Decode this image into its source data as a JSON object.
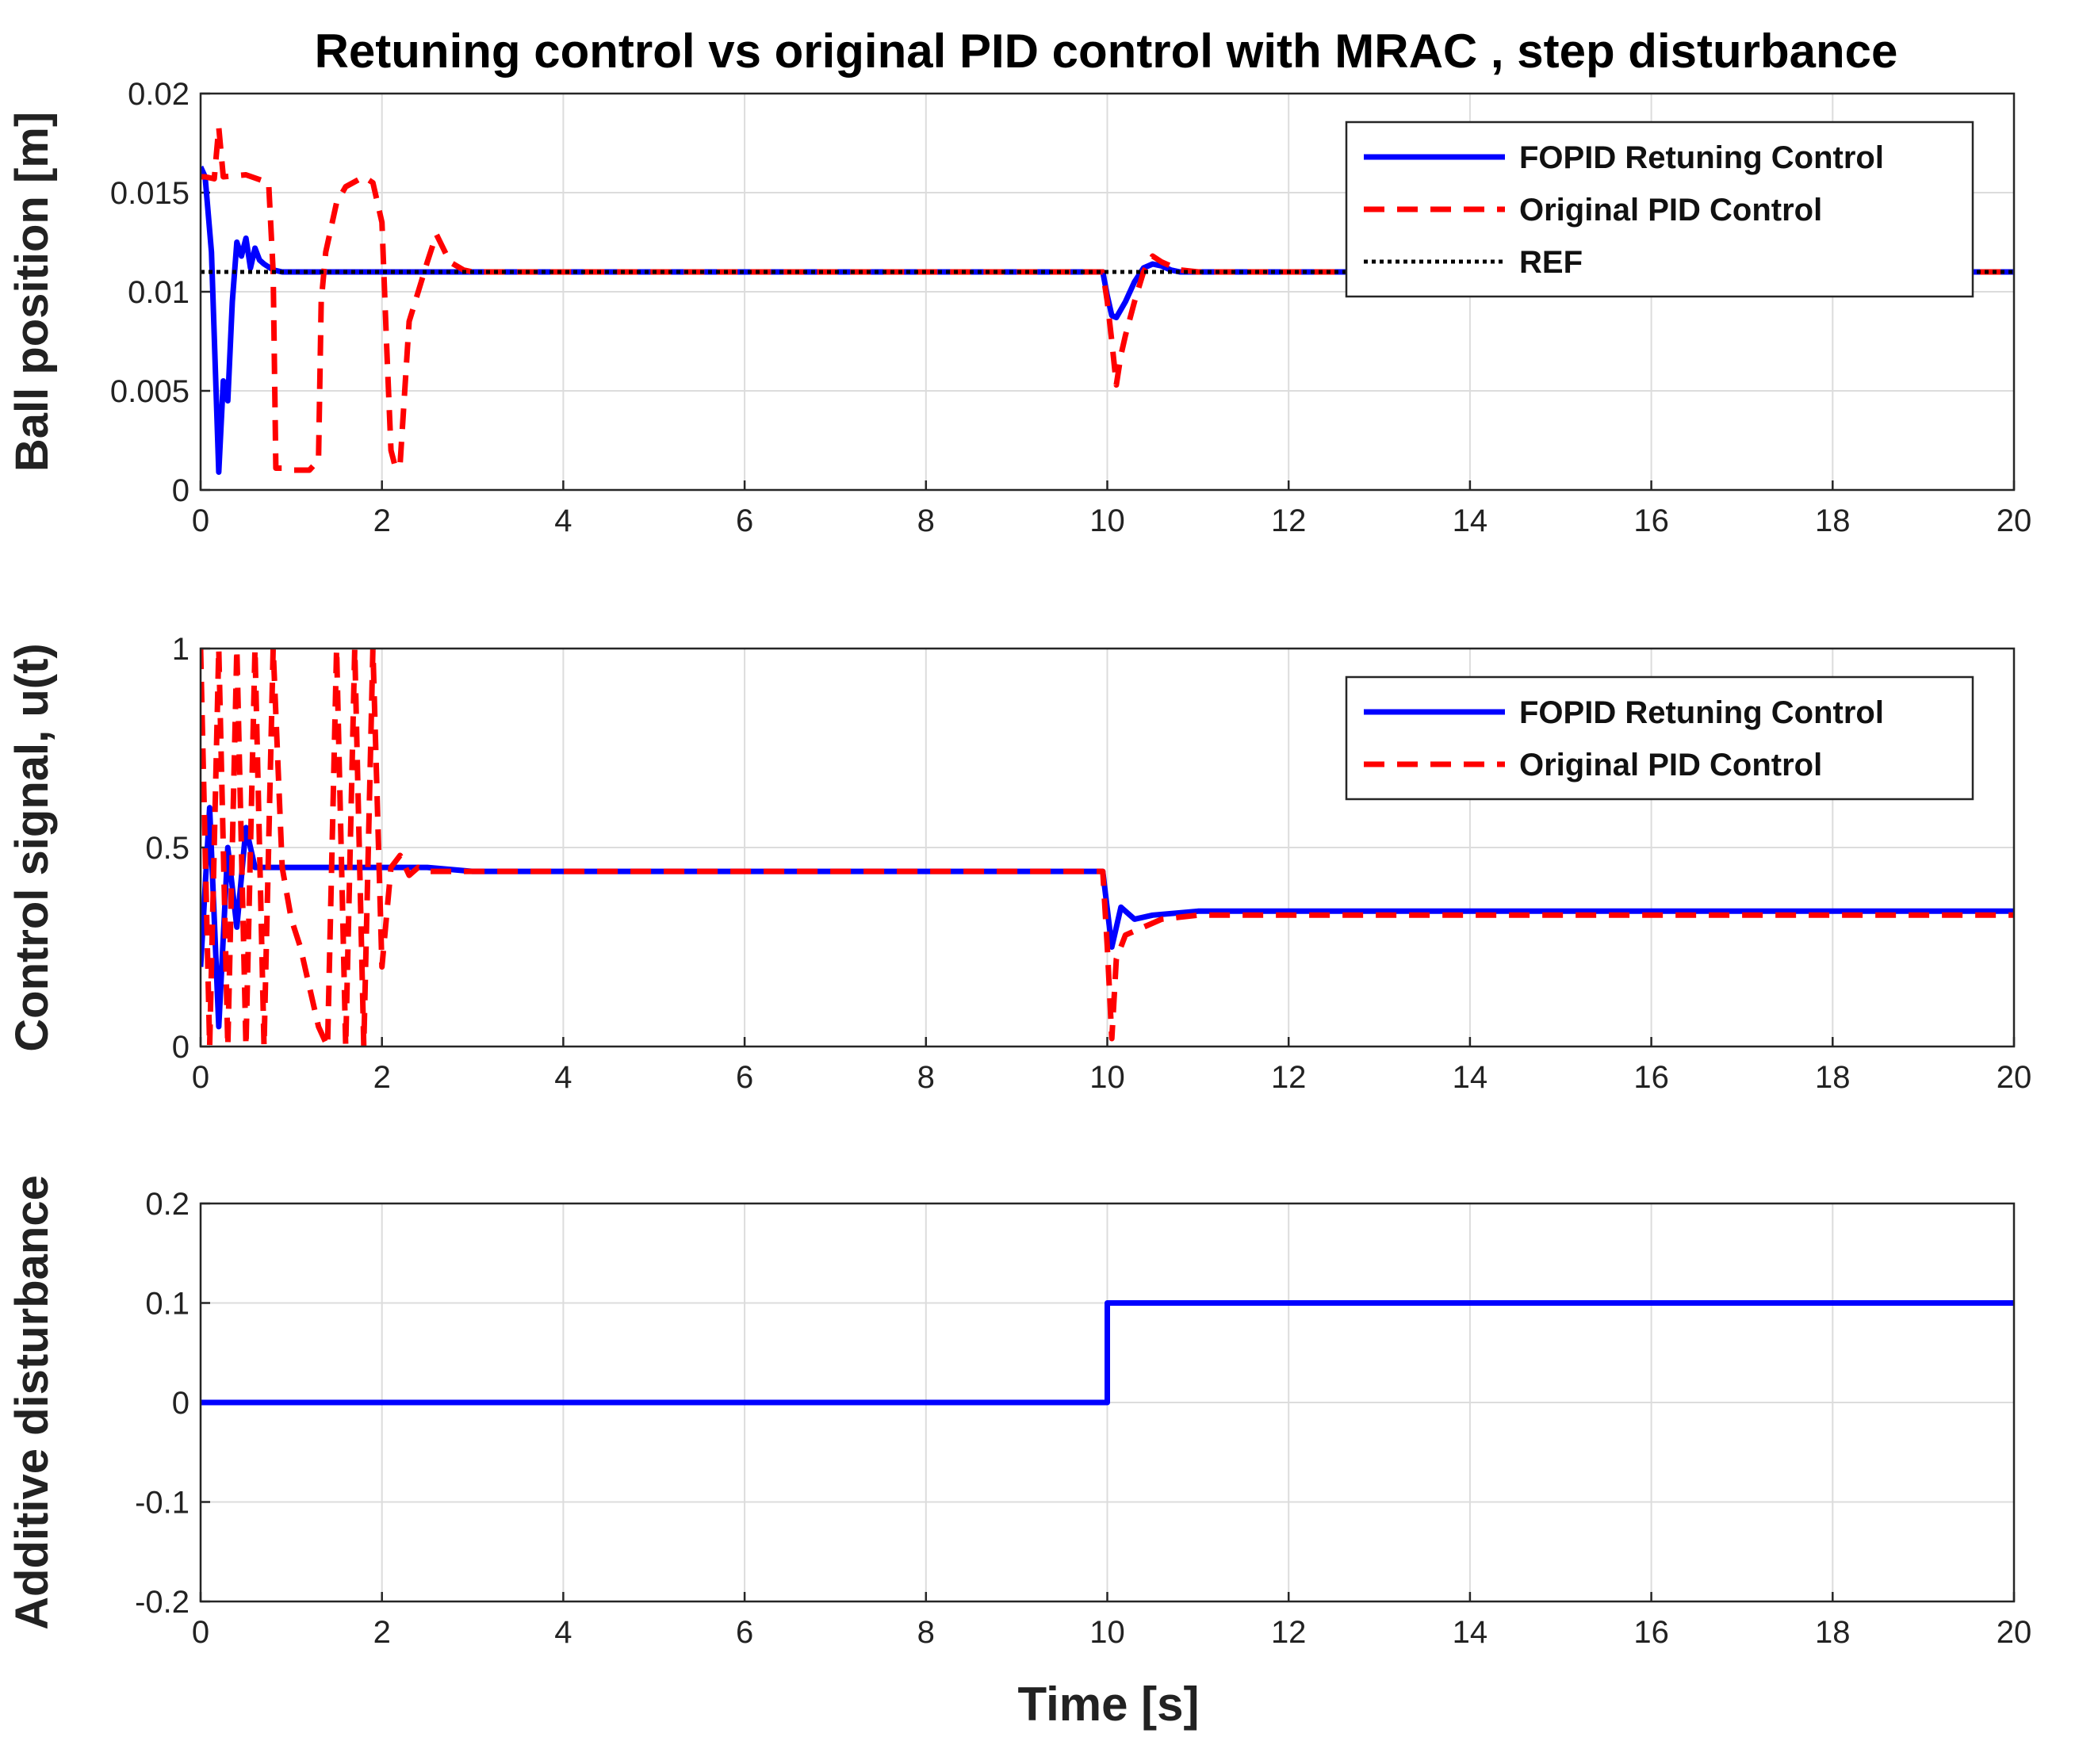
{
  "figure": {
    "title": "Retuning control vs original PID control with MRAC , step disturbance",
    "xlabel": "Time [s]"
  },
  "colors": {
    "fopid": "#0000ff",
    "pid": "#ff0000",
    "ref": "#000000",
    "grid": "#dcdcdc"
  },
  "chart_data": [
    {
      "type": "line",
      "ylabel": "Ball position [m]",
      "xlim": [
        0,
        20
      ],
      "ylim": [
        0,
        0.02
      ],
      "xticks": [
        "0",
        "2",
        "4",
        "6",
        "8",
        "10",
        "12",
        "14",
        "16",
        "18",
        "20"
      ],
      "yticks": [
        "0",
        "0.005",
        "0.01",
        "0.015",
        "0.02"
      ],
      "grid": true,
      "legend_position": "top-right",
      "series": [
        {
          "name": "FOPID Retuning Control",
          "style": "solid",
          "x": [
            0,
            0.05,
            0.12,
            0.2,
            0.25,
            0.3,
            0.35,
            0.4,
            0.45,
            0.5,
            0.55,
            0.6,
            0.65,
            0.7,
            0.8,
            0.9,
            1.0,
            1.5,
            2.0,
            4.0,
            6.0,
            8.0,
            9.95,
            10.0,
            10.05,
            10.1,
            10.2,
            10.3,
            10.4,
            10.5,
            10.6,
            10.7,
            10.8,
            11.0,
            12.0,
            14.0,
            16.0,
            18.0,
            20.0
          ],
          "y": [
            0.0163,
            0.0158,
            0.012,
            0.0009,
            0.0055,
            0.0045,
            0.0095,
            0.0125,
            0.0118,
            0.0127,
            0.0112,
            0.0122,
            0.0116,
            0.0114,
            0.0111,
            0.011,
            0.011,
            0.011,
            0.011,
            0.011,
            0.011,
            0.011,
            0.011,
            0.0098,
            0.0088,
            0.0087,
            0.0095,
            0.0105,
            0.0112,
            0.0114,
            0.0113,
            0.0111,
            0.011,
            0.011,
            0.011,
            0.011,
            0.011,
            0.011,
            0.011
          ]
        },
        {
          "name": "Original PID Control",
          "style": "dashed",
          "x": [
            0,
            0.05,
            0.15,
            0.2,
            0.25,
            0.5,
            0.75,
            0.8,
            0.83,
            0.9,
            1.0,
            1.2,
            1.3,
            1.33,
            1.38,
            1.5,
            1.6,
            1.8,
            1.9,
            2.0,
            2.05,
            2.1,
            2.15,
            2.2,
            2.3,
            2.5,
            2.6,
            2.75,
            2.9,
            3.0,
            4.0,
            6.0,
            8.0,
            9.95,
            10.0,
            10.05,
            10.1,
            10.15,
            10.2,
            10.3,
            10.4,
            10.5,
            10.6,
            10.8,
            11.0,
            12.0,
            14.0,
            16.0,
            18.0,
            20.0
          ],
          "y": [
            0.0158,
            0.0158,
            0.0157,
            0.0183,
            0.0158,
            0.0159,
            0.0155,
            0.011,
            0.0011,
            0.0011,
            0.001,
            0.001,
            0.0015,
            0.0095,
            0.012,
            0.0145,
            0.0153,
            0.0158,
            0.0155,
            0.0135,
            0.0075,
            0.002,
            0.0011,
            0.0013,
            0.0085,
            0.0115,
            0.0129,
            0.0115,
            0.0111,
            0.011,
            0.011,
            0.011,
            0.011,
            0.011,
            0.0095,
            0.0075,
            0.0053,
            0.0068,
            0.0078,
            0.0095,
            0.011,
            0.0118,
            0.0115,
            0.0111,
            0.011,
            0.011,
            0.011,
            0.011,
            0.011,
            0.011
          ]
        },
        {
          "name": "REF",
          "style": "dotted",
          "x": [
            0,
            20
          ],
          "y": [
            0.011,
            0.011
          ]
        }
      ]
    },
    {
      "type": "line",
      "ylabel": "Control signal, u(t)",
      "xlim": [
        0,
        20
      ],
      "ylim": [
        0,
        1
      ],
      "xticks": [
        "0",
        "2",
        "4",
        "6",
        "8",
        "10",
        "12",
        "14",
        "16",
        "18",
        "20"
      ],
      "yticks": [
        "0",
        "0.5",
        "1"
      ],
      "grid": true,
      "legend_position": "top-right",
      "series": [
        {
          "name": "FOPID Retuning Control",
          "style": "solid",
          "x": [
            0,
            0.1,
            0.2,
            0.3,
            0.4,
            0.5,
            0.6,
            0.8,
            1.0,
            1.5,
            2.0,
            2.5,
            3.0,
            4.0,
            5.0,
            6.0,
            7.0,
            8.0,
            9.0,
            9.95,
            10.05,
            10.15,
            10.3,
            10.5,
            11.0,
            12.0,
            14.0,
            16.0,
            18.0,
            20.0
          ],
          "y": [
            0.2,
            0.6,
            0.05,
            0.5,
            0.3,
            0.55,
            0.45,
            0.45,
            0.45,
            0.45,
            0.45,
            0.45,
            0.44,
            0.44,
            0.44,
            0.44,
            0.44,
            0.44,
            0.44,
            0.44,
            0.25,
            0.35,
            0.32,
            0.33,
            0.34,
            0.34,
            0.34,
            0.34,
            0.34,
            0.34
          ]
        },
        {
          "name": "Original PID Control",
          "style": "dashed",
          "x": [
            0,
            0.1,
            0.2,
            0.3,
            0.4,
            0.5,
            0.6,
            0.7,
            0.8,
            0.9,
            1.0,
            1.1,
            1.2,
            1.3,
            1.4,
            1.5,
            1.6,
            1.7,
            1.8,
            1.9,
            2.0,
            2.1,
            2.2,
            2.3,
            2.4,
            2.5,
            3.0,
            4.0,
            5.0,
            6.0,
            7.0,
            8.0,
            9.0,
            9.95,
            10.0,
            10.05,
            10.1,
            10.2,
            10.4,
            10.6,
            11.0,
            12.0,
            14.0,
            16.0,
            18.0,
            20.0
          ],
          "y": [
            1,
            0,
            1,
            0,
            1,
            0,
            1,
            0,
            1,
            0.45,
            0.32,
            0.25,
            0.15,
            0.05,
            0.0,
            1,
            0,
            1,
            0,
            1,
            0.2,
            0.45,
            0.48,
            0.43,
            0.45,
            0.44,
            0.44,
            0.44,
            0.44,
            0.44,
            0.44,
            0.44,
            0.44,
            0.44,
            0.25,
            0.02,
            0.22,
            0.28,
            0.3,
            0.32,
            0.33,
            0.33,
            0.33,
            0.33,
            0.33,
            0.33
          ]
        }
      ]
    },
    {
      "type": "line",
      "ylabel": "Additive disturbance",
      "xlim": [
        0,
        20
      ],
      "ylim": [
        -0.2,
        0.2
      ],
      "xticks": [
        "0",
        "2",
        "4",
        "6",
        "8",
        "10",
        "12",
        "14",
        "16",
        "18",
        "20"
      ],
      "yticks": [
        "-0.2",
        "-0.1",
        "0",
        "0.1",
        "0.2"
      ],
      "grid": true,
      "series": [
        {
          "name": "disturbance",
          "style": "solid",
          "x": [
            0,
            10,
            10,
            20
          ],
          "y": [
            0,
            0,
            0.1,
            0.1
          ]
        }
      ]
    }
  ]
}
